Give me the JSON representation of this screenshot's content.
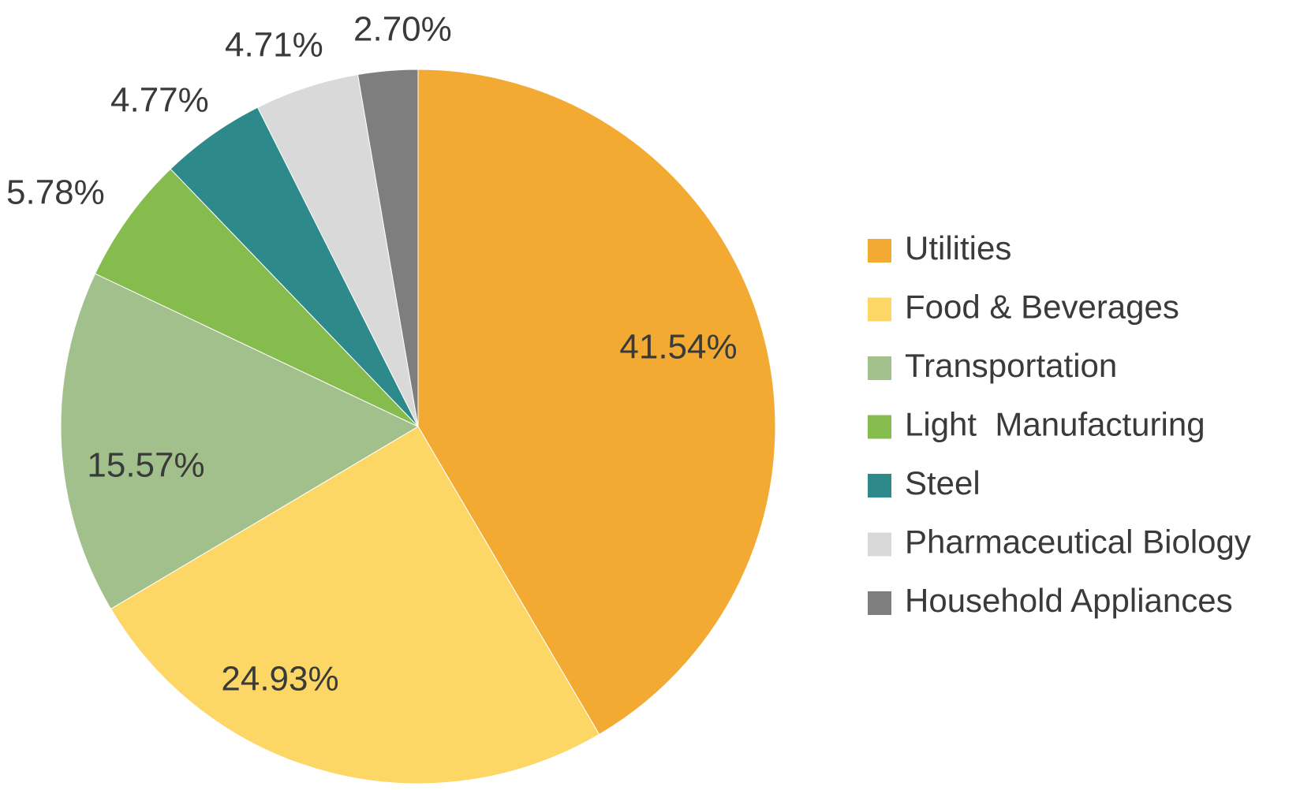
{
  "chart_data": {
    "type": "pie",
    "title": "",
    "legend_position": "right",
    "start": "12 o'clock, clockwise",
    "slices": [
      {
        "name": "Utilities",
        "value": 41.54,
        "label": "41.54%",
        "color": "#F2AA33"
      },
      {
        "name": "Food & Beverages",
        "value": 24.93,
        "label": "24.93%",
        "color": "#FCD765"
      },
      {
        "name": "Transportation",
        "value": 15.57,
        "label": "15.57%",
        "color": "#A2C08B"
      },
      {
        "name": "Light  Manufacturing",
        "value": 5.78,
        "label": "5.78%",
        "color": "#86BC4E"
      },
      {
        "name": "Steel",
        "value": 4.77,
        "label": "4.77%",
        "color": "#2E8A8A"
      },
      {
        "name": "Pharmaceutical Biology",
        "value": 4.71,
        "label": "4.71%",
        "color": "#D9D9D9"
      },
      {
        "name": "Household Appliances",
        "value": 2.7,
        "label": "2.70%",
        "color": "#7E7E7E"
      }
    ]
  }
}
